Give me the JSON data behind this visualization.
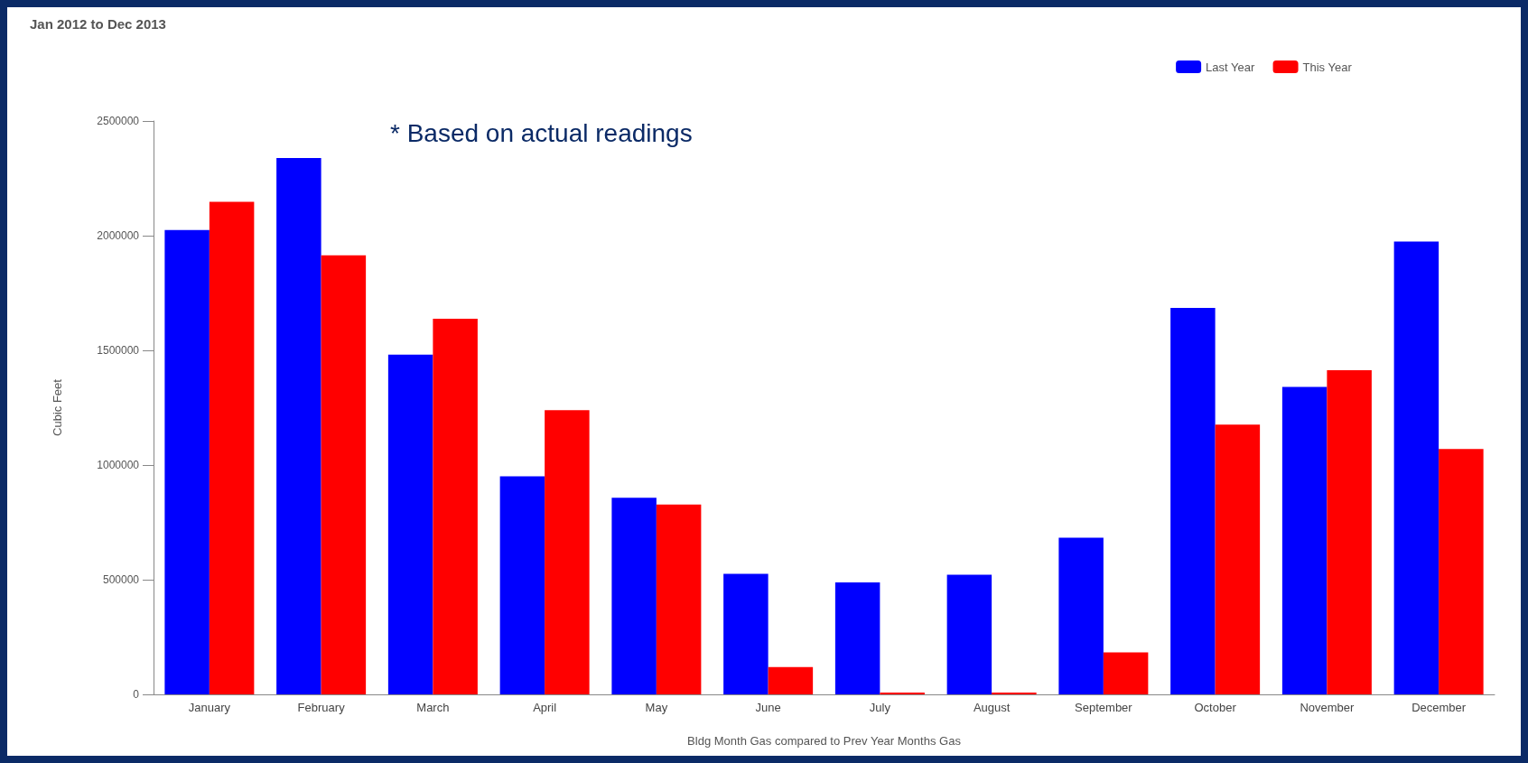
{
  "chart_data": {
    "type": "bar",
    "title": "Jan 2012 to Dec 2013",
    "categories": [
      "January",
      "February",
      "March",
      "April",
      "May",
      "June",
      "July",
      "August",
      "September",
      "October",
      "November",
      "December"
    ],
    "series": [
      {
        "name": "Last Year",
        "color": "#0000ff",
        "values": [
          2025000,
          2339000,
          1481000,
          951000,
          857000,
          526000,
          488000,
          522000,
          683000,
          1685000,
          1341000,
          1974000
        ]
      },
      {
        "name": "This Year",
        "color": "#ff0000",
        "values": [
          2148000,
          1914000,
          1638000,
          1239000,
          828000,
          119000,
          8000,
          8000,
          183000,
          1176000,
          1413000,
          1070000
        ]
      }
    ],
    "ylim": [
      0,
      2500000
    ],
    "yticks": [
      0,
      500000,
      1000000,
      1500000,
      2000000,
      2500000
    ],
    "ylabel": "Cubic Feet",
    "xlabel": "Bldg Month Gas compared to Prev Year Months Gas",
    "annotations": [
      "* Based on actual readings"
    ],
    "legend": "top right",
    "grid": false
  }
}
